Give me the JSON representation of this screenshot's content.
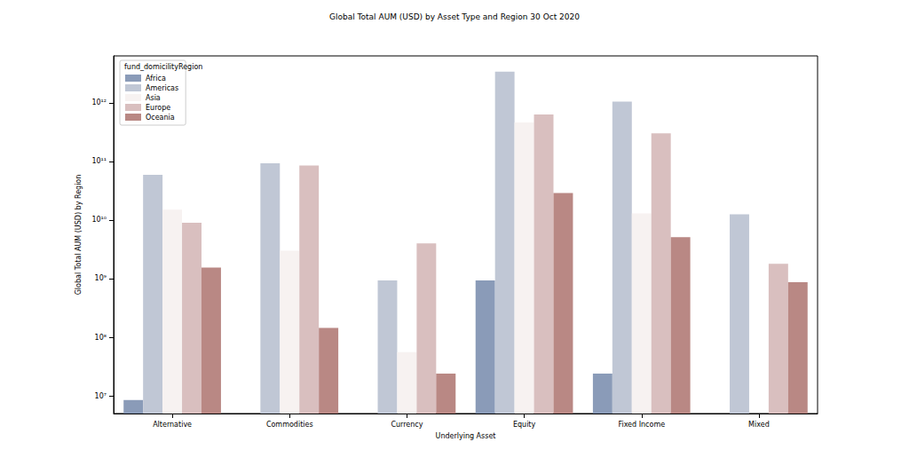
{
  "chart_data": {
    "type": "bar",
    "title": "Global Total AUM (USD) by Asset Type and Region 30 Oct 2020",
    "x_label": "Underlying Asset",
    "y_label": "Global Total AUM (USD) by Region",
    "legend_title": "fund_domicilityRegion",
    "categories": [
      "Alternative",
      "Commodities",
      "Currency",
      "Equity",
      "Fixed Income",
      "Mixed"
    ],
    "series": [
      {
        "name": "Africa",
        "color": "#8a9bb8",
        "values": [
          8500000,
          null,
          null,
          930000000,
          24000000,
          null
        ]
      },
      {
        "name": "Americas",
        "color": "#c0c7d5",
        "values": [
          59000000000,
          93000000000,
          930000000,
          3400000000000,
          1050000000000,
          12500000000
        ]
      },
      {
        "name": "Asia",
        "color": "#f7f2f1",
        "values": [
          15000000000,
          3000000000,
          56000000,
          460000000000,
          13000000000,
          null
        ]
      },
      {
        "name": "Europe",
        "color": "#d9bfbf",
        "values": [
          9000000000,
          85000000000,
          4000000000,
          630000000000,
          300000000000,
          1800000000
        ]
      },
      {
        "name": "Oceania",
        "color": "#b98884",
        "values": [
          1550000000,
          145000000,
          24000000,
          29000000000,
          5100000000,
          870000000
        ]
      }
    ],
    "log": "y",
    "ylim": [
      5000000,
      6300000000000
    ],
    "yticks": [
      {
        "value": 10000000,
        "label": "10⁷"
      },
      {
        "value": 100000000,
        "label": "10⁸"
      },
      {
        "value": 1000000000,
        "label": "10⁹"
      },
      {
        "value": 10000000000,
        "label": "10¹⁰"
      },
      {
        "value": 100000000000,
        "label": "10¹¹"
      },
      {
        "value": 1000000000000,
        "label": "10¹²"
      }
    ],
    "grid": false,
    "legend": "upper left"
  }
}
